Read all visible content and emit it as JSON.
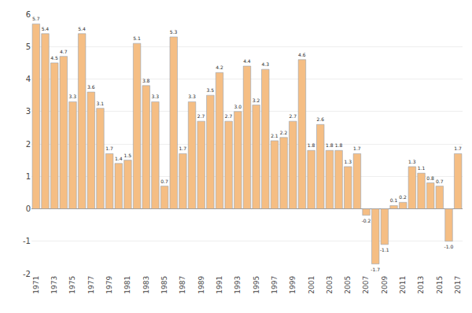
{
  "chart_data": {
    "type": "bar",
    "categories": [
      "1971",
      null,
      "1973",
      null,
      "1975",
      null,
      "1977",
      null,
      "1979",
      null,
      "1981",
      null,
      "1983",
      null,
      "1985",
      null,
      "1987",
      null,
      "1989",
      null,
      "1991",
      null,
      "1993",
      null,
      "1995",
      null,
      "1997",
      null,
      "1999",
      null,
      "2001",
      null,
      "2003",
      null,
      "2005",
      null,
      "2007",
      null,
      "2009",
      null,
      "2011",
      null,
      "2013",
      null,
      "2015",
      null,
      "2017"
    ],
    "values": [
      5.7,
      5.4,
      4.5,
      4.7,
      3.3,
      5.4,
      3.6,
      3.1,
      1.7,
      1.4,
      1.5,
      5.1,
      3.8,
      3.3,
      0.7,
      5.3,
      1.7,
      3.3,
      2.7,
      3.5,
      4.2,
      2.7,
      3.0,
      4.4,
      3.2,
      4.3,
      2.1,
      2.2,
      2.7,
      4.6,
      1.8,
      2.6,
      1.8,
      1.8,
      1.3,
      1.7,
      -0.2,
      -1.7,
      -1.1,
      0.1,
      0.2,
      1.3,
      1.1,
      0.8,
      0.7,
      -1.0,
      1.7
    ],
    "value_labels": [
      "5.7",
      "5.4",
      "4.5",
      "4.7",
      "3.3",
      "5.4",
      "3.6",
      "3.1",
      "1.7",
      "1.4",
      "1.5",
      "5.1",
      "3.8",
      "3.3",
      "0.7",
      "5.3",
      "1.7",
      "3.3",
      "2.7",
      "3.5",
      "4.2",
      "2.7",
      "3.0",
      "4.4",
      "3.2",
      "4.3",
      "2.1",
      "2.2",
      "2.7",
      "4.6",
      "1.8",
      "2.6",
      "1.8",
      "1.8",
      "1.3",
      "1.7",
      "-0.2",
      "-1.7",
      "-1.1",
      "0.1",
      "0.2",
      "1.3",
      "1.1",
      "0.8",
      "0.7",
      "-1.0",
      "1.7"
    ],
    "color": "#f5be84",
    "ylim": [
      -2,
      6
    ],
    "yticks": [
      -2,
      -1,
      0,
      1,
      2,
      3,
      4,
      5,
      6
    ],
    "grid": true,
    "data_labels": true
  }
}
